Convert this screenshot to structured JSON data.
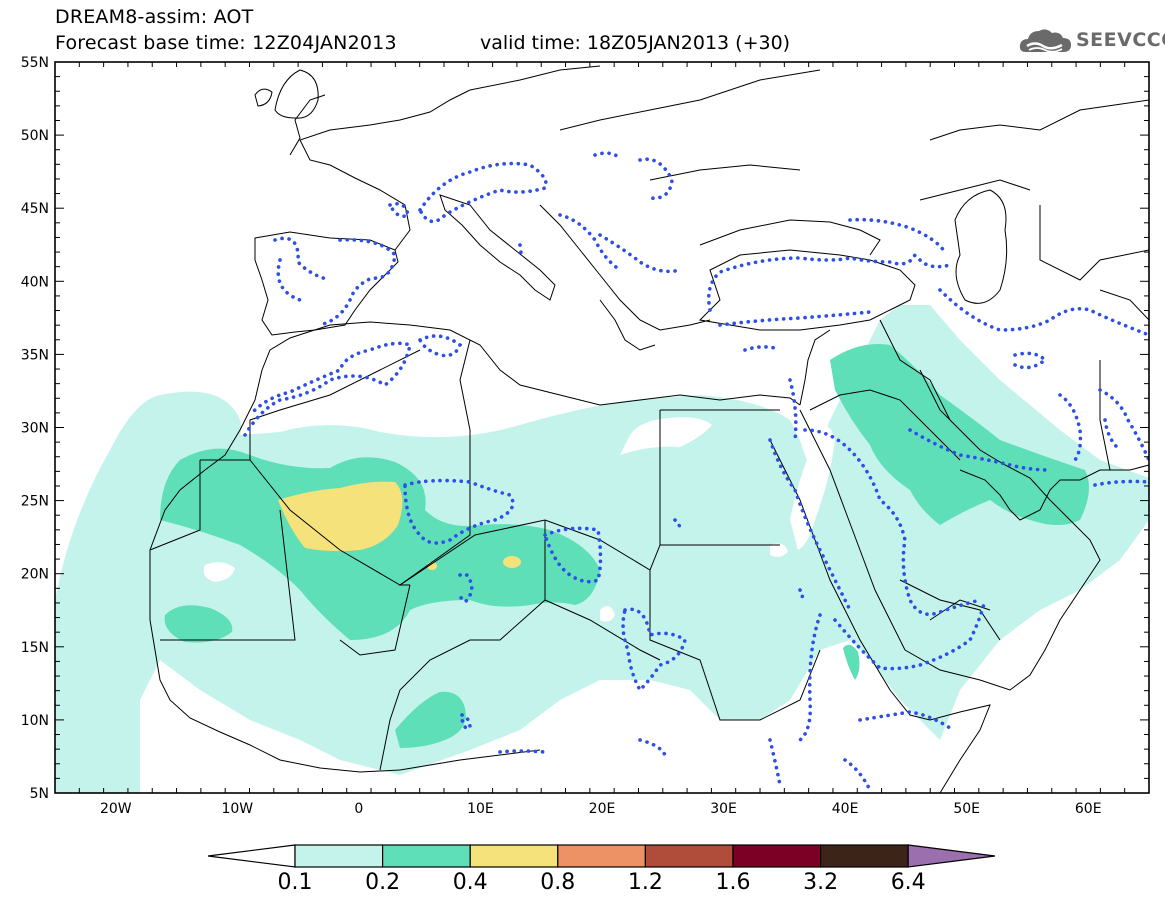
{
  "header": {
    "title": "DREAM8-assim: AOT",
    "forecast_base": "Forecast base time: 12Z04JAN2013",
    "valid_time": "valid time: 18Z05JAN2013 (+30)",
    "logo_text": "SEEVCCC"
  },
  "map": {
    "lon_range": [
      -25,
      65
    ],
    "lat_range": [
      5,
      55
    ],
    "lon_ticks": [
      {
        "value": -20,
        "label": "20W"
      },
      {
        "value": -10,
        "label": "10W"
      },
      {
        "value": 0,
        "label": "0"
      },
      {
        "value": 10,
        "label": "10E"
      },
      {
        "value": 20,
        "label": "20E"
      },
      {
        "value": 30,
        "label": "30E"
      },
      {
        "value": 40,
        "label": "40E"
      },
      {
        "value": 50,
        "label": "50E"
      },
      {
        "value": 60,
        "label": "60E"
      }
    ],
    "lat_ticks": [
      {
        "value": 55,
        "label": "55N"
      },
      {
        "value": 50,
        "label": "50N"
      },
      {
        "value": 45,
        "label": "45N"
      },
      {
        "value": 40,
        "label": "40N"
      },
      {
        "value": 35,
        "label": "35N"
      },
      {
        "value": 30,
        "label": "30N"
      },
      {
        "value": 25,
        "label": "25N"
      },
      {
        "value": 20,
        "label": "20N"
      },
      {
        "value": 15,
        "label": "15N"
      },
      {
        "value": 10,
        "label": "10N"
      },
      {
        "value": 5,
        "label": "5N"
      }
    ],
    "colors": {
      "level_0_1": "#c4f3ec",
      "level_0_2": "#5fdfb8",
      "level_0_4": "#f5e27a",
      "coast": "#000000",
      "dotted_contour": "#2e4fe6"
    }
  },
  "colorbar": {
    "colors": [
      "#ffffff",
      "#c4f3ec",
      "#5fdfb8",
      "#f5e27a",
      "#ec9264",
      "#b04c3a",
      "#7c0026",
      "#3d2418",
      "#9b6fae"
    ],
    "labels": [
      "0.1",
      "0.2",
      "0.4",
      "0.8",
      "1.2",
      "1.6",
      "3.2",
      "6.4"
    ]
  }
}
